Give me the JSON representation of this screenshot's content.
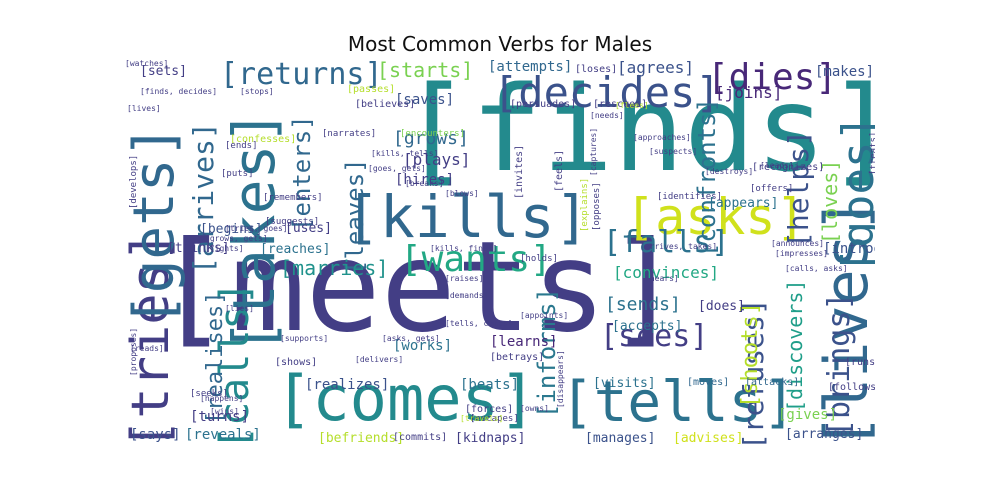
{
  "chart_data": {
    "type": "wordcloud",
    "title": "Most Common Verbs for Males",
    "words": [
      {
        "text": "[finds]",
        "weight": 100,
        "color": "#238a8d"
      },
      {
        "text": "[meets]",
        "weight": 98,
        "color": "#433e85"
      },
      {
        "text": "[kills]",
        "weight": 60,
        "color": "#31688e"
      },
      {
        "text": "[comes]",
        "weight": 58,
        "color": "#238a8d"
      },
      {
        "text": "[tells]",
        "weight": 52,
        "color": "#2c728e"
      },
      {
        "text": "[tries]",
        "weight": 50,
        "color": "#433e85"
      },
      {
        "text": "[lives]",
        "weight": 48,
        "color": "#31688e"
      },
      {
        "text": "[gets]",
        "weight": 47,
        "color": "#31688e"
      },
      {
        "text": "[takes]",
        "weight": 46,
        "color": "#2c728e"
      },
      {
        "text": "[asks]",
        "weight": 44,
        "color": "#d0e11c"
      },
      {
        "text": "[decides]",
        "weight": 40,
        "color": "#3b528b"
      },
      {
        "text": "[calls]",
        "weight": 38,
        "color": "#238a8d"
      },
      {
        "text": "[dies]",
        "weight": 36,
        "color": "#482878"
      },
      {
        "text": "[wants]",
        "weight": 35,
        "color": "#22a884"
      },
      {
        "text": "[falls]",
        "weight": 34,
        "color": "#2c728e"
      },
      {
        "text": "[returns]",
        "weight": 32,
        "color": "#31688e"
      },
      {
        "text": "[goes]",
        "weight": 32,
        "color": "#2c728e"
      },
      {
        "text": "[brings]",
        "weight": 30,
        "color": "#3b528b"
      },
      {
        "text": "[arrives]",
        "weight": 28,
        "color": "#31688e"
      },
      {
        "text": "[sees]",
        "weight": 28,
        "color": "#433e85"
      },
      {
        "text": "[refuses]",
        "weight": 27,
        "color": "#3b528b"
      },
      {
        "text": "[helps]",
        "weight": 26,
        "color": "#3b528b"
      },
      {
        "text": "[leaves]",
        "weight": 26,
        "color": "#31688e"
      },
      {
        "text": "[informs]",
        "weight": 24,
        "color": "#2a788e"
      },
      {
        "text": "[shoots]",
        "weight": 23,
        "color": "#b5de2b"
      },
      {
        "text": "[enters]",
        "weight": 22,
        "color": "#31688e"
      },
      {
        "text": "[discovers]",
        "weight": 21,
        "color": "#1f9e89"
      },
      {
        "text": "[realises]",
        "weight": 21,
        "color": "#31688e"
      },
      {
        "text": "[confronts]",
        "weight": 20,
        "color": "#2c728e"
      },
      {
        "text": "[loves]",
        "weight": 20,
        "color": "#7ad151"
      },
      {
        "text": "[marries]",
        "weight": 20,
        "color": "#20928c"
      },
      {
        "text": "[starts]",
        "weight": 18,
        "color": "#7ad151"
      },
      {
        "text": "[sends]",
        "weight": 18,
        "color": "#2c728e"
      },
      {
        "text": "[grows]",
        "weight": 17,
        "color": "#31688e"
      },
      {
        "text": "[plays]",
        "weight": 17,
        "color": "#433e85"
      },
      {
        "text": "[saves]",
        "weight": 16,
        "color": "#3b528b"
      },
      {
        "text": "[joins]",
        "weight": 16,
        "color": "#482878"
      },
      {
        "text": "[convinces]",
        "weight": 16,
        "color": "#22a884"
      },
      {
        "text": "[gives]",
        "weight": 16,
        "color": "#7ad151"
      },
      {
        "text": "[reveals]",
        "weight": 15,
        "color": "#2c728e"
      },
      {
        "text": "[introduces]",
        "weight": 15,
        "color": "#3b528b"
      },
      {
        "text": "[hires]",
        "weight": 15,
        "color": "#433e85"
      },
      {
        "text": "[agrees]",
        "weight": 15,
        "color": "#3b528b"
      },
      {
        "text": "[makes]",
        "weight": 14,
        "color": "#3b528b"
      },
      {
        "text": "[attempts]",
        "weight": 14,
        "color": "#31688e"
      },
      {
        "text": "[works]",
        "weight": 14,
        "color": "#2c728e"
      },
      {
        "text": "[realizes]",
        "weight": 14,
        "color": "#3b528b"
      },
      {
        "text": "[beats]",
        "weight": 14,
        "color": "#2c728e"
      },
      {
        "text": "[turns]",
        "weight": 14,
        "color": "#433e85"
      },
      {
        "text": "[says]",
        "weight": 14,
        "color": "#3b528b"
      },
      {
        "text": "[visits]",
        "weight": 13,
        "color": "#2c728e"
      },
      {
        "text": "[accepts]",
        "weight": 13,
        "color": "#2c728e"
      },
      {
        "text": "[learns]",
        "weight": 13,
        "color": "#482878"
      },
      {
        "text": "[arranges]",
        "weight": 13,
        "color": "#3b528b"
      },
      {
        "text": "[uses]",
        "weight": 13,
        "color": "#433e85"
      },
      {
        "text": "[begins]",
        "weight": 12,
        "color": "#3b528b"
      },
      {
        "text": "[thinks]",
        "weight": 12,
        "color": "#433e85"
      },
      {
        "text": "[reaches]",
        "weight": 12,
        "color": "#2c728e"
      },
      {
        "text": "[sets]",
        "weight": 12,
        "color": "#433e85"
      },
      {
        "text": "[kidnaps]",
        "weight": 12,
        "color": "#433e85"
      },
      {
        "text": "[manages]",
        "weight": 12,
        "color": "#3b528b"
      },
      {
        "text": "[advises]",
        "weight": 12,
        "color": "#d0e11c"
      },
      {
        "text": "[does]",
        "weight": 11,
        "color": "#433e85"
      },
      {
        "text": "[appears]",
        "weight": 11,
        "color": "#2c728e"
      },
      {
        "text": "[befriends]",
        "weight": 11,
        "color": "#b5de2b"
      },
      {
        "text": "[commits]",
        "weight": 10,
        "color": "#433e85"
      },
      {
        "text": "[moves]",
        "weight": 10,
        "color": "#31688e"
      },
      {
        "text": "[attacks]",
        "weight": 10,
        "color": "#31688e"
      },
      {
        "text": "[follows]",
        "weight": 10,
        "color": "#433e85"
      },
      {
        "text": "[betrays]",
        "weight": 10,
        "color": "#433e85"
      },
      {
        "text": "[rescues]",
        "weight": 9,
        "color": "#433e85"
      },
      {
        "text": "[persuades]",
        "weight": 9,
        "color": "#433e85"
      },
      {
        "text": "[believes]",
        "weight": 9,
        "color": "#433e85"
      },
      {
        "text": "[loses]",
        "weight": 9,
        "color": "#433e85"
      },
      {
        "text": "[passes]",
        "weight": 9,
        "color": "#b5de2b"
      },
      {
        "text": "[confesses]",
        "weight": 9,
        "color": "#b5de2b"
      },
      {
        "text": "[invites]",
        "weight": 9,
        "color": "#433e85"
      },
      {
        "text": "[feels]",
        "weight": 9,
        "color": "#433e85"
      },
      {
        "text": "[forces]",
        "weight": 9,
        "color": "#433e85"
      },
      {
        "text": "[shows]",
        "weight": 9,
        "color": "#433e85"
      },
      {
        "text": "[runs]",
        "weight": 9,
        "color": "#433e85"
      },
      {
        "text": "[recognizes]",
        "weight": 8,
        "color": "#433e85"
      },
      {
        "text": "[offers]",
        "weight": 8,
        "color": "#433e85"
      },
      {
        "text": "[narrates]",
        "weight": 8,
        "color": "#433e85"
      },
      {
        "text": "[encounters]",
        "weight": 8,
        "color": "#7ad151"
      },
      {
        "text": "[escapes]",
        "weight": 8,
        "color": "#433e85"
      },
      {
        "text": "[ends]",
        "weight": 8,
        "color": "#433e85"
      },
      {
        "text": "[puts]",
        "weight": 8,
        "color": "#433e85"
      },
      {
        "text": "[remembers]",
        "weight": 8,
        "color": "#433e85"
      },
      {
        "text": "[suggests]",
        "weight": 8,
        "color": "#433e85"
      },
      {
        "text": "[seeks]",
        "weight": 8,
        "color": "#433e85"
      },
      {
        "text": "[wins]",
        "weight": 8,
        "color": "#433e85"
      },
      {
        "text": "[happens]",
        "weight": 7,
        "color": "#433e85"
      },
      {
        "text": "[stops]",
        "weight": 7,
        "color": "#433e85"
      },
      {
        "text": "[identifies]",
        "weight": 7,
        "color": "#433e85"
      },
      {
        "text": "[explains]",
        "weight": 7,
        "color": "#b5de2b"
      },
      {
        "text": "[opposes]",
        "weight": 7,
        "color": "#433e85"
      },
      {
        "text": "[holds]",
        "weight": 7,
        "color": "#433e85"
      },
      {
        "text": "[raises]",
        "weight": 7,
        "color": "#433e85"
      },
      {
        "text": "[demands]",
        "weight": 7,
        "color": "#433e85"
      },
      {
        "text": "[approaches]",
        "weight": 7,
        "color": "#433e85"
      },
      {
        "text": "[disappears]",
        "weight": 7,
        "color": "#433e85"
      },
      {
        "text": "[captures]",
        "weight": 7,
        "color": "#433e85"
      },
      {
        "text": "[destroys]",
        "weight": 7,
        "color": "#433e85"
      },
      {
        "text": "[needs]",
        "weight": 7,
        "color": "#433e85"
      },
      {
        "text": "[leads]",
        "weight": 7,
        "color": "#433e85"
      },
      {
        "text": "[owns]",
        "weight": 7,
        "color": "#433e85"
      },
      {
        "text": "[treats]",
        "weight": 7,
        "color": "#433e85"
      },
      {
        "text": "[develops]",
        "weight": 7,
        "color": "#433e85"
      },
      {
        "text": "[travels]",
        "weight": 7,
        "color": "#b5de2b"
      },
      {
        "text": "[fights]",
        "weight": 6,
        "color": "#433e85"
      },
      {
        "text": "[announces]",
        "weight": 6,
        "color": "#433e85"
      },
      {
        "text": "[proposes]",
        "weight": 6,
        "color": "#433e85"
      },
      {
        "text": "[suspects]",
        "weight": 6,
        "color": "#433e85"
      },
      {
        "text": "[breaks]",
        "weight": 6,
        "color": "#433e85"
      },
      {
        "text": "[lives]",
        "weight": 6,
        "color": "#433e85"
      },
      {
        "text": "[finds, decides]",
        "weight": 6,
        "color": "#433e85"
      },
      {
        "text": "[asks, gets]",
        "weight": 6,
        "color": "#433e85"
      },
      {
        "text": "[tells, comes]",
        "weight": 6,
        "color": "#433e85"
      },
      {
        "text": "[calls, asks]",
        "weight": 6,
        "color": "#433e85"
      },
      {
        "text": "[goes, gets]",
        "weight": 6,
        "color": "#433e85"
      },
      {
        "text": "[kills, tells]",
        "weight": 6,
        "color": "#433e85"
      },
      {
        "text": "[kills, finds]",
        "weight": 6,
        "color": "#433e85"
      },
      {
        "text": "[grows, gets]",
        "weight": 6,
        "color": "#433e85"
      },
      {
        "text": "[arrives, takes]",
        "weight": 6,
        "color": "#433e85"
      },
      {
        "text": "[tries, goes]",
        "weight": 6,
        "color": "#433e85"
      },
      {
        "text": "[flees]",
        "weight": 6,
        "color": "#b5de2b"
      },
      {
        "text": "[blows]",
        "weight": 6,
        "color": "#433e85"
      },
      {
        "text": "[impresses]",
        "weight": 6,
        "color": "#433e85"
      },
      {
        "text": "[supports]",
        "weight": 6,
        "color": "#433e85"
      },
      {
        "text": "[reads]",
        "weight": 6,
        "color": "#433e85"
      },
      {
        "text": "[lies]",
        "weight": 6,
        "color": "#433e85"
      },
      {
        "text": "[appoints]",
        "weight": 6,
        "color": "#433e85"
      },
      {
        "text": "[delivers]",
        "weight": 6,
        "color": "#433e85"
      },
      {
        "text": "[hears]",
        "weight": 6,
        "color": "#433e85"
      },
      {
        "text": "[watches]",
        "weight": 6,
        "color": "#433e85"
      }
    ]
  }
}
